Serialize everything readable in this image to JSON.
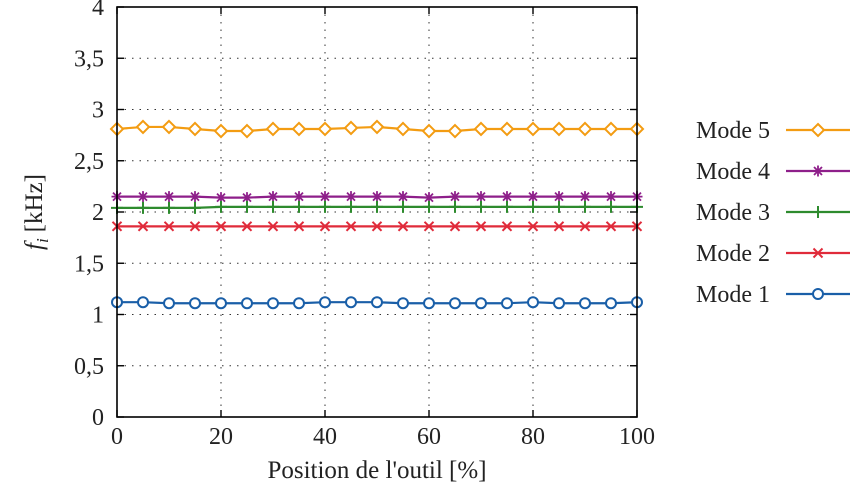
{
  "chart_data": {
    "type": "line",
    "xlabel": "Position de l'outil [%]",
    "ylabel": "f",
    "ylabel_subscript": "i",
    "ylabel_unit": "[kHz]",
    "xlim": [
      0,
      100
    ],
    "ylim": [
      0,
      4
    ],
    "xticks": [
      0,
      20,
      40,
      60,
      80,
      100
    ],
    "xtick_labels": [
      "0",
      "20",
      "40",
      "60",
      "80",
      "100"
    ],
    "yticks": [
      0,
      0.5,
      1,
      1.5,
      2,
      2.5,
      3,
      3.5,
      4
    ],
    "ytick_labels": [
      "0",
      "0,5",
      "1",
      "1,5",
      "2",
      "2,5",
      "3",
      "3,5",
      "4"
    ],
    "grid": true,
    "legend_position": "right",
    "x": [
      0,
      5,
      10,
      15,
      20,
      25,
      30,
      35,
      40,
      45,
      50,
      55,
      60,
      65,
      70,
      75,
      80,
      85,
      90,
      95,
      100
    ],
    "series": [
      {
        "name": "Mode 5",
        "color": "#f39c12",
        "marker": "diamond",
        "values": [
          2.81,
          2.83,
          2.83,
          2.81,
          2.79,
          2.79,
          2.81,
          2.81,
          2.81,
          2.82,
          2.83,
          2.81,
          2.79,
          2.79,
          2.81,
          2.81,
          2.81,
          2.81,
          2.81,
          2.81,
          2.81
        ]
      },
      {
        "name": "Mode 4",
        "color": "#8e1f8a",
        "marker": "asterisk",
        "values": [
          2.15,
          2.15,
          2.15,
          2.15,
          2.14,
          2.14,
          2.15,
          2.15,
          2.15,
          2.15,
          2.15,
          2.15,
          2.14,
          2.15,
          2.15,
          2.15,
          2.15,
          2.15,
          2.15,
          2.15,
          2.15
        ]
      },
      {
        "name": "Mode 3",
        "color": "#2e8b2e",
        "marker": "plus",
        "values": [
          2.04,
          2.04,
          2.04,
          2.04,
          2.05,
          2.05,
          2.05,
          2.05,
          2.05,
          2.05,
          2.05,
          2.05,
          2.05,
          2.05,
          2.05,
          2.05,
          2.05,
          2.05,
          2.05,
          2.05,
          2.05
        ]
      },
      {
        "name": "Mode 2",
        "color": "#e02b3a",
        "marker": "cross",
        "values": [
          1.86,
          1.86,
          1.86,
          1.86,
          1.86,
          1.86,
          1.86,
          1.86,
          1.86,
          1.86,
          1.86,
          1.86,
          1.86,
          1.86,
          1.86,
          1.86,
          1.86,
          1.86,
          1.86,
          1.86,
          1.86
        ]
      },
      {
        "name": "Mode 1",
        "color": "#1a5fa8",
        "marker": "circle",
        "values": [
          1.12,
          1.12,
          1.11,
          1.11,
          1.11,
          1.11,
          1.11,
          1.11,
          1.12,
          1.12,
          1.12,
          1.11,
          1.11,
          1.11,
          1.11,
          1.11,
          1.12,
          1.11,
          1.11,
          1.11,
          1.12
        ]
      }
    ]
  }
}
